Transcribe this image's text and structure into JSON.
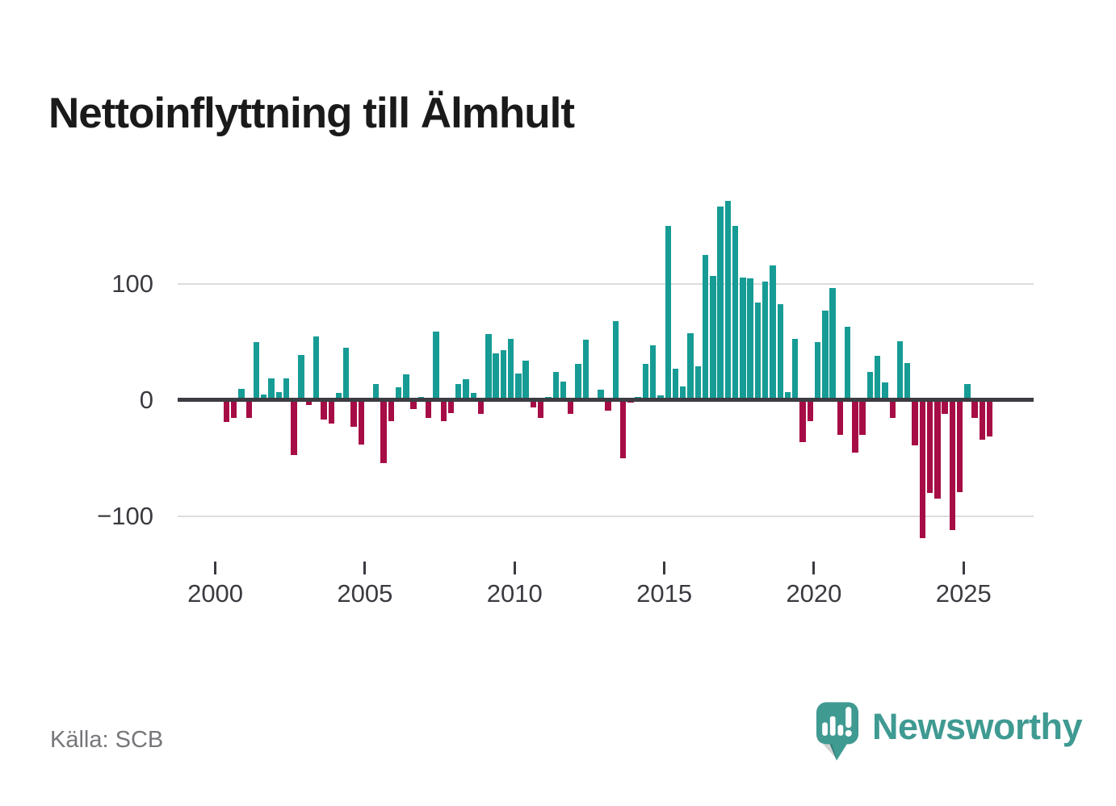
{
  "title": "Nettoinflyttning till Älmhult",
  "source": "Källa: SCB",
  "branding": {
    "logo_text": "Newsworthy"
  },
  "colors": {
    "positive": "#169c95",
    "negative": "#a60c45",
    "grid": "#dcdcdc",
    "zero_line": "#3c3c42",
    "axis_text": "#3a3a40",
    "title_text": "#1a1a1a",
    "source_text": "#76767b",
    "brand": "#3f9a92",
    "background": "#ffffff"
  },
  "chart_data": {
    "type": "bar",
    "title": "Nettoinflyttning till Älmhult",
    "xlabel": "",
    "ylabel": "",
    "frequency": "quarterly",
    "start": "2000 Q1",
    "end": "2025 Q4",
    "grid": "horizontal",
    "legend": "none",
    "ylim": [
      -135,
      185
    ],
    "y_ticks": [
      100,
      0,
      -100
    ],
    "y_tick_labels": [
      "100",
      "0",
      "−100"
    ],
    "x_tick_years": [
      2000,
      2005,
      2010,
      2015,
      2020,
      2025
    ],
    "x_tick_labels": [
      "2000",
      "2005",
      "2010",
      "2015",
      "2020",
      "2025"
    ],
    "series": [
      {
        "name": "Nettoinflyttning",
        "values": [
          0,
          -19,
          -15,
          10,
          -15,
          50,
          5,
          19,
          7,
          19,
          -47,
          39,
          -4,
          55,
          -17,
          -20,
          6,
          45,
          -23,
          -38,
          0,
          14,
          -54,
          -18,
          11,
          22,
          -8,
          3,
          -15,
          59,
          -18,
          -11,
          14,
          18,
          6,
          -12,
          57,
          40,
          43,
          53,
          23,
          34,
          -6,
          -15,
          3,
          24,
          16,
          -12,
          31,
          52,
          0,
          9,
          -9,
          68,
          -50,
          -2,
          3,
          31,
          47,
          4,
          150,
          27,
          12,
          58,
          29,
          125,
          107,
          167,
          172,
          150,
          106,
          105,
          84,
          102,
          116,
          83,
          7,
          53,
          -36,
          -18,
          50,
          77,
          97,
          -30,
          63,
          -45,
          -30,
          24,
          38,
          15,
          -15,
          51,
          32,
          -39,
          -119,
          -80,
          -85,
          -12,
          -112,
          -79,
          14,
          -15,
          -34,
          -31
        ]
      }
    ]
  }
}
